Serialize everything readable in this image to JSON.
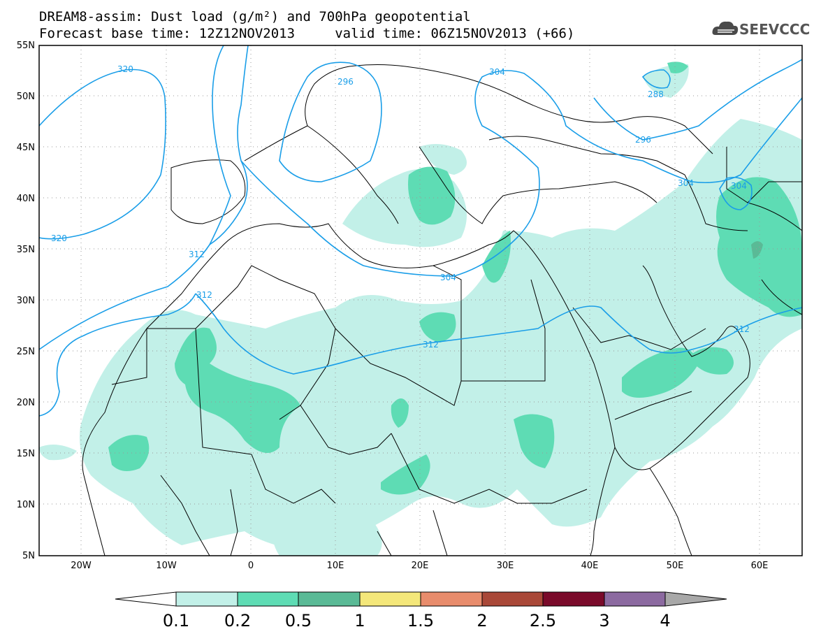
{
  "title": {
    "line1": "DREAM8-assim: Dust load (g/m²) and 700hPa geopotential",
    "line2": "Forecast base time: 12Z12NOV2013     valid time: 06Z15NOV2013 (+66)"
  },
  "logo": {
    "text": "SEEVCCC",
    "icon": "cloud-icon"
  },
  "axes": {
    "lat_labels": [
      "55N",
      "50N",
      "45N",
      "40N",
      "35N",
      "30N",
      "25N",
      "20N",
      "15N",
      "10N",
      "5N"
    ],
    "lon_labels": [
      "20W",
      "10W",
      "0",
      "10E",
      "20E",
      "30E",
      "40E",
      "50E",
      "60E"
    ],
    "lat_range": [
      5,
      55
    ],
    "lon_range": [
      -25,
      65
    ],
    "grid": "dotted"
  },
  "contours": {
    "labels": [
      "320",
      "296",
      "304",
      "288",
      "296",
      "304",
      "304",
      "320",
      "312",
      "312",
      "304",
      "312",
      "312"
    ],
    "color": "#1a9ee8"
  },
  "colorbar": {
    "ticks": [
      "0.1",
      "0.2",
      "0.5",
      "1",
      "1.5",
      "2",
      "2.5",
      "3",
      "4"
    ],
    "colors": [
      "#c2f0e8",
      "#5edcb4",
      "#5aba96",
      "#f4e77a",
      "#e88c6c",
      "#a94838",
      "#7a0a2a",
      "#8c6aa0"
    ],
    "under_color": "#ffffff",
    "over_color": "#a8a8a8"
  }
}
